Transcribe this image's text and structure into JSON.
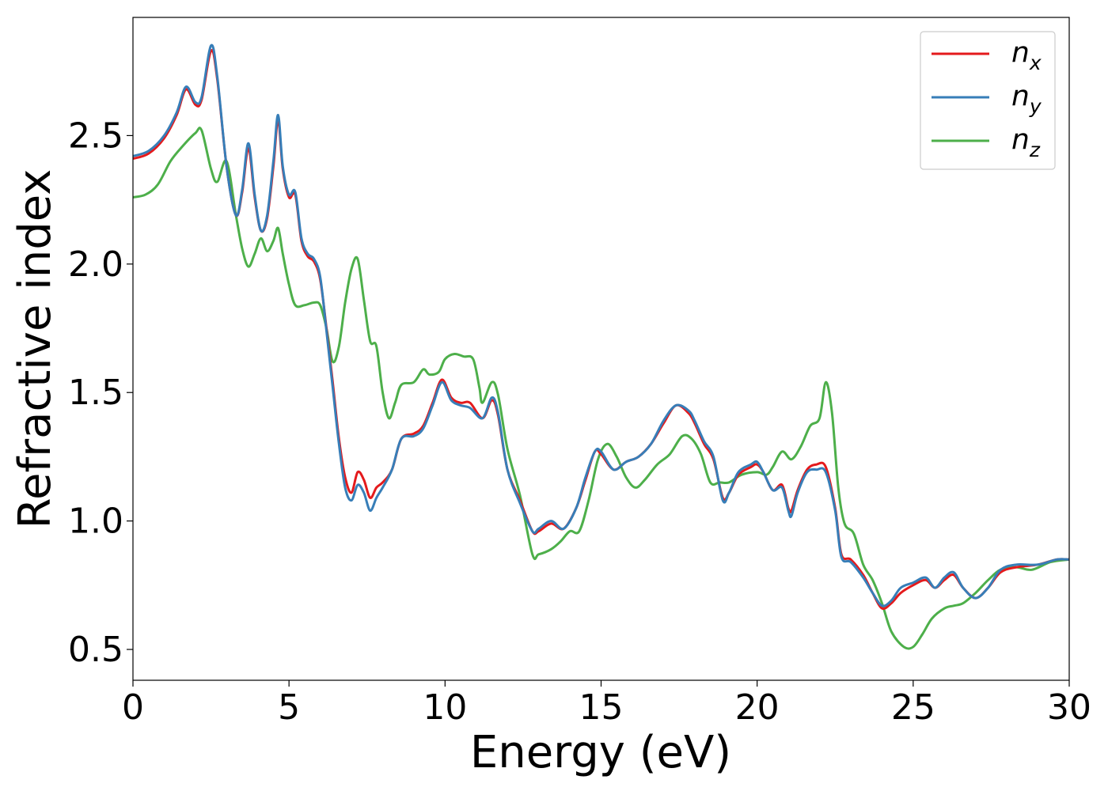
{
  "chart_data": {
    "type": "line",
    "title": "",
    "xlabel": "Energy (eV)",
    "ylabel": "Refractive index",
    "xlim": [
      0,
      30
    ],
    "ylim": [
      0.38,
      2.96
    ],
    "xticks": [
      0,
      5,
      10,
      15,
      20,
      25,
      30
    ],
    "xtick_labels": [
      "0",
      "5",
      "10",
      "15",
      "20",
      "25",
      "30"
    ],
    "yticks": [
      0.5,
      1.0,
      1.5,
      2.0,
      2.5
    ],
    "ytick_labels": [
      "0.5",
      "1.0",
      "1.5",
      "2.0",
      "2.5"
    ],
    "grid": false,
    "legend_position": "top-right",
    "series": [
      {
        "name": "n_x",
        "name_base": "n",
        "name_sub": "x",
        "color": "#e41a1c",
        "points": [
          [
            0,
            2.41
          ],
          [
            0.5,
            2.43
          ],
          [
            1.0,
            2.49
          ],
          [
            1.4,
            2.58
          ],
          [
            1.7,
            2.68
          ],
          [
            2.0,
            2.62
          ],
          [
            2.2,
            2.64
          ],
          [
            2.5,
            2.83
          ],
          [
            2.7,
            2.72
          ],
          [
            3.0,
            2.38
          ],
          [
            3.3,
            2.19
          ],
          [
            3.5,
            2.28
          ],
          [
            3.7,
            2.45
          ],
          [
            3.9,
            2.26
          ],
          [
            4.1,
            2.13
          ],
          [
            4.3,
            2.18
          ],
          [
            4.5,
            2.38
          ],
          [
            4.65,
            2.56
          ],
          [
            4.8,
            2.37
          ],
          [
            5.0,
            2.26
          ],
          [
            5.2,
            2.27
          ],
          [
            5.4,
            2.09
          ],
          [
            5.6,
            2.03
          ],
          [
            5.8,
            2.01
          ],
          [
            6.0,
            1.94
          ],
          [
            6.2,
            1.75
          ],
          [
            6.4,
            1.54
          ],
          [
            6.6,
            1.32
          ],
          [
            6.8,
            1.17
          ],
          [
            7.0,
            1.11
          ],
          [
            7.2,
            1.19
          ],
          [
            7.4,
            1.16
          ],
          [
            7.6,
            1.09
          ],
          [
            7.8,
            1.13
          ],
          [
            8.0,
            1.15
          ],
          [
            8.3,
            1.2
          ],
          [
            8.6,
            1.32
          ],
          [
            9.0,
            1.34
          ],
          [
            9.3,
            1.37
          ],
          [
            9.6,
            1.46
          ],
          [
            9.9,
            1.55
          ],
          [
            10.2,
            1.48
          ],
          [
            10.5,
            1.46
          ],
          [
            10.8,
            1.46
          ],
          [
            11.2,
            1.4
          ],
          [
            11.5,
            1.47
          ],
          [
            11.7,
            1.41
          ],
          [
            12.0,
            1.2
          ],
          [
            12.4,
            1.08
          ],
          [
            12.8,
            0.96
          ],
          [
            13.0,
            0.96
          ],
          [
            13.4,
            0.99
          ],
          [
            13.8,
            0.97
          ],
          [
            14.2,
            1.05
          ],
          [
            14.5,
            1.16
          ],
          [
            14.8,
            1.27
          ],
          [
            15.0,
            1.26
          ],
          [
            15.4,
            1.2
          ],
          [
            15.8,
            1.23
          ],
          [
            16.2,
            1.25
          ],
          [
            16.6,
            1.3
          ],
          [
            17.0,
            1.38
          ],
          [
            17.4,
            1.45
          ],
          [
            17.8,
            1.42
          ],
          [
            18.0,
            1.38
          ],
          [
            18.3,
            1.3
          ],
          [
            18.6,
            1.24
          ],
          [
            18.9,
            1.09
          ],
          [
            19.1,
            1.11
          ],
          [
            19.4,
            1.18
          ],
          [
            19.8,
            1.21
          ],
          [
            20.0,
            1.22
          ],
          [
            20.2,
            1.19
          ],
          [
            20.5,
            1.12
          ],
          [
            20.8,
            1.14
          ],
          [
            21.0,
            1.05
          ],
          [
            21.1,
            1.04
          ],
          [
            21.3,
            1.12
          ],
          [
            21.6,
            1.2
          ],
          [
            21.9,
            1.22
          ],
          [
            22.2,
            1.21
          ],
          [
            22.5,
            1.05
          ],
          [
            22.7,
            0.87
          ],
          [
            23.0,
            0.85
          ],
          [
            23.4,
            0.79
          ],
          [
            23.7,
            0.72
          ],
          [
            24.0,
            0.66
          ],
          [
            24.3,
            0.68
          ],
          [
            24.6,
            0.72
          ],
          [
            25.0,
            0.75
          ],
          [
            25.4,
            0.77
          ],
          [
            25.7,
            0.74
          ],
          [
            26.0,
            0.77
          ],
          [
            26.3,
            0.79
          ],
          [
            26.6,
            0.74
          ],
          [
            27.0,
            0.7
          ],
          [
            27.4,
            0.74
          ],
          [
            27.8,
            0.8
          ],
          [
            28.3,
            0.82
          ],
          [
            29.0,
            0.83
          ],
          [
            29.6,
            0.85
          ],
          [
            30.0,
            0.85
          ]
        ]
      },
      {
        "name": "n_y",
        "name_base": "n",
        "name_sub": "y",
        "color": "#377eb8",
        "points": [
          [
            0,
            2.42
          ],
          [
            0.5,
            2.44
          ],
          [
            1.0,
            2.5
          ],
          [
            1.4,
            2.59
          ],
          [
            1.7,
            2.69
          ],
          [
            2.0,
            2.63
          ],
          [
            2.2,
            2.65
          ],
          [
            2.5,
            2.85
          ],
          [
            2.7,
            2.73
          ],
          [
            3.0,
            2.38
          ],
          [
            3.3,
            2.19
          ],
          [
            3.5,
            2.29
          ],
          [
            3.7,
            2.47
          ],
          [
            3.9,
            2.27
          ],
          [
            4.1,
            2.13
          ],
          [
            4.3,
            2.19
          ],
          [
            4.5,
            2.4
          ],
          [
            4.65,
            2.58
          ],
          [
            4.8,
            2.38
          ],
          [
            5.0,
            2.27
          ],
          [
            5.2,
            2.28
          ],
          [
            5.4,
            2.1
          ],
          [
            5.6,
            2.04
          ],
          [
            5.8,
            2.02
          ],
          [
            6.0,
            1.95
          ],
          [
            6.2,
            1.74
          ],
          [
            6.4,
            1.52
          ],
          [
            6.6,
            1.3
          ],
          [
            6.8,
            1.13
          ],
          [
            7.0,
            1.08
          ],
          [
            7.2,
            1.14
          ],
          [
            7.4,
            1.11
          ],
          [
            7.6,
            1.04
          ],
          [
            7.8,
            1.09
          ],
          [
            8.0,
            1.13
          ],
          [
            8.3,
            1.2
          ],
          [
            8.6,
            1.32
          ],
          [
            9.0,
            1.33
          ],
          [
            9.3,
            1.36
          ],
          [
            9.6,
            1.45
          ],
          [
            9.9,
            1.54
          ],
          [
            10.2,
            1.47
          ],
          [
            10.5,
            1.45
          ],
          [
            10.8,
            1.44
          ],
          [
            11.2,
            1.4
          ],
          [
            11.5,
            1.48
          ],
          [
            11.7,
            1.42
          ],
          [
            12.0,
            1.2
          ],
          [
            12.4,
            1.07
          ],
          [
            12.8,
            0.96
          ],
          [
            13.0,
            0.97
          ],
          [
            13.4,
            1.0
          ],
          [
            13.8,
            0.97
          ],
          [
            14.2,
            1.05
          ],
          [
            14.5,
            1.17
          ],
          [
            14.8,
            1.27
          ],
          [
            15.0,
            1.27
          ],
          [
            15.4,
            1.2
          ],
          [
            15.8,
            1.23
          ],
          [
            16.2,
            1.25
          ],
          [
            16.6,
            1.3
          ],
          [
            17.0,
            1.39
          ],
          [
            17.4,
            1.45
          ],
          [
            17.8,
            1.43
          ],
          [
            18.0,
            1.39
          ],
          [
            18.3,
            1.31
          ],
          [
            18.6,
            1.25
          ],
          [
            18.9,
            1.08
          ],
          [
            19.1,
            1.11
          ],
          [
            19.4,
            1.19
          ],
          [
            19.8,
            1.22
          ],
          [
            20.0,
            1.23
          ],
          [
            20.2,
            1.19
          ],
          [
            20.5,
            1.12
          ],
          [
            20.8,
            1.13
          ],
          [
            21.0,
            1.04
          ],
          [
            21.1,
            1.02
          ],
          [
            21.3,
            1.11
          ],
          [
            21.6,
            1.19
          ],
          [
            21.9,
            1.2
          ],
          [
            22.2,
            1.19
          ],
          [
            22.5,
            1.04
          ],
          [
            22.7,
            0.86
          ],
          [
            23.0,
            0.84
          ],
          [
            23.4,
            0.78
          ],
          [
            23.7,
            0.72
          ],
          [
            24.0,
            0.67
          ],
          [
            24.3,
            0.69
          ],
          [
            24.6,
            0.74
          ],
          [
            25.0,
            0.76
          ],
          [
            25.4,
            0.78
          ],
          [
            25.7,
            0.74
          ],
          [
            26.0,
            0.78
          ],
          [
            26.3,
            0.8
          ],
          [
            26.6,
            0.74
          ],
          [
            27.0,
            0.7
          ],
          [
            27.4,
            0.74
          ],
          [
            27.8,
            0.81
          ],
          [
            28.3,
            0.83
          ],
          [
            29.0,
            0.83
          ],
          [
            29.6,
            0.85
          ],
          [
            30.0,
            0.85
          ]
        ]
      },
      {
        "name": "n_z",
        "name_base": "n",
        "name_sub": "z",
        "color": "#4daf4a",
        "points": [
          [
            0,
            2.26
          ],
          [
            0.4,
            2.27
          ],
          [
            0.8,
            2.31
          ],
          [
            1.2,
            2.4
          ],
          [
            1.6,
            2.46
          ],
          [
            2.0,
            2.51
          ],
          [
            2.2,
            2.52
          ],
          [
            2.5,
            2.37
          ],
          [
            2.7,
            2.32
          ],
          [
            3.0,
            2.4
          ],
          [
            3.3,
            2.19
          ],
          [
            3.5,
            2.06
          ],
          [
            3.7,
            1.99
          ],
          [
            3.9,
            2.04
          ],
          [
            4.1,
            2.1
          ],
          [
            4.3,
            2.05
          ],
          [
            4.5,
            2.09
          ],
          [
            4.65,
            2.14
          ],
          [
            4.8,
            2.04
          ],
          [
            5.0,
            1.92
          ],
          [
            5.2,
            1.84
          ],
          [
            5.5,
            1.84
          ],
          [
            5.8,
            1.85
          ],
          [
            6.0,
            1.84
          ],
          [
            6.2,
            1.75
          ],
          [
            6.4,
            1.62
          ],
          [
            6.6,
            1.68
          ],
          [
            6.8,
            1.85
          ],
          [
            7.0,
            1.98
          ],
          [
            7.2,
            2.02
          ],
          [
            7.4,
            1.86
          ],
          [
            7.6,
            1.7
          ],
          [
            7.8,
            1.68
          ],
          [
            8.0,
            1.5
          ],
          [
            8.2,
            1.4
          ],
          [
            8.4,
            1.46
          ],
          [
            8.6,
            1.53
          ],
          [
            9.0,
            1.54
          ],
          [
            9.3,
            1.59
          ],
          [
            9.5,
            1.57
          ],
          [
            9.8,
            1.58
          ],
          [
            10.0,
            1.63
          ],
          [
            10.3,
            1.65
          ],
          [
            10.6,
            1.64
          ],
          [
            10.9,
            1.63
          ],
          [
            11.1,
            1.52
          ],
          [
            11.2,
            1.46
          ],
          [
            11.5,
            1.54
          ],
          [
            11.7,
            1.49
          ],
          [
            12.0,
            1.28
          ],
          [
            12.4,
            1.1
          ],
          [
            12.8,
            0.87
          ],
          [
            13.0,
            0.87
          ],
          [
            13.4,
            0.89
          ],
          [
            13.7,
            0.92
          ],
          [
            14.0,
            0.96
          ],
          [
            14.3,
            0.96
          ],
          [
            14.6,
            1.08
          ],
          [
            14.9,
            1.24
          ],
          [
            15.2,
            1.3
          ],
          [
            15.5,
            1.25
          ],
          [
            15.8,
            1.17
          ],
          [
            16.1,
            1.13
          ],
          [
            16.4,
            1.16
          ],
          [
            16.8,
            1.22
          ],
          [
            17.2,
            1.26
          ],
          [
            17.6,
            1.33
          ],
          [
            17.9,
            1.32
          ],
          [
            18.2,
            1.26
          ],
          [
            18.5,
            1.15
          ],
          [
            18.8,
            1.15
          ],
          [
            19.1,
            1.15
          ],
          [
            19.5,
            1.18
          ],
          [
            20.0,
            1.19
          ],
          [
            20.3,
            1.18
          ],
          [
            20.5,
            1.21
          ],
          [
            20.8,
            1.27
          ],
          [
            21.1,
            1.24
          ],
          [
            21.4,
            1.29
          ],
          [
            21.7,
            1.37
          ],
          [
            22.0,
            1.4
          ],
          [
            22.2,
            1.54
          ],
          [
            22.4,
            1.42
          ],
          [
            22.6,
            1.13
          ],
          [
            22.8,
            0.99
          ],
          [
            23.1,
            0.95
          ],
          [
            23.4,
            0.83
          ],
          [
            23.7,
            0.77
          ],
          [
            24.0,
            0.68
          ],
          [
            24.3,
            0.57
          ],
          [
            24.7,
            0.51
          ],
          [
            25.0,
            0.51
          ],
          [
            25.3,
            0.56
          ],
          [
            25.6,
            0.62
          ],
          [
            26.0,
            0.66
          ],
          [
            26.3,
            0.67
          ],
          [
            26.6,
            0.68
          ],
          [
            27.0,
            0.72
          ],
          [
            27.4,
            0.77
          ],
          [
            27.8,
            0.81
          ],
          [
            28.3,
            0.82
          ],
          [
            28.8,
            0.81
          ],
          [
            29.4,
            0.84
          ],
          [
            30.0,
            0.85
          ]
        ]
      }
    ]
  }
}
